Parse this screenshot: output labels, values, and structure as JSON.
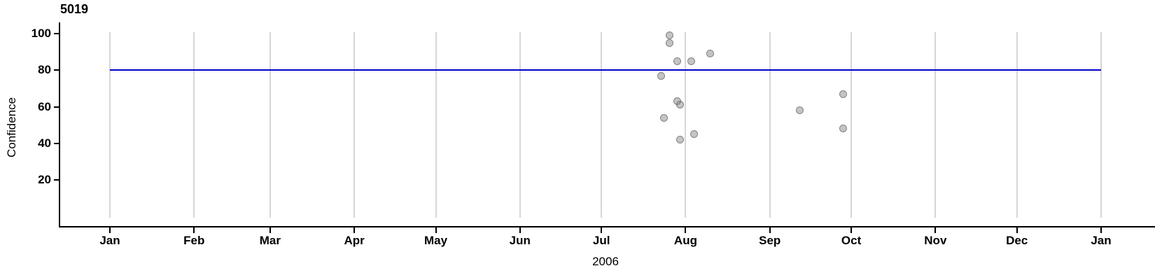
{
  "chart_data": {
    "type": "scatter",
    "title": "5019",
    "xlabel": "2006",
    "ylabel": "Confidence",
    "x_domain": [
      "2006-01-01",
      "2007-01-01"
    ],
    "ylim": [
      0,
      100
    ],
    "y_ticks": [
      20,
      40,
      60,
      80,
      100
    ],
    "x_ticks": [
      {
        "date": "2006-01-01",
        "label": "Jan"
      },
      {
        "date": "2006-02-01",
        "label": "Feb"
      },
      {
        "date": "2006-03-01",
        "label": "Mar"
      },
      {
        "date": "2006-04-01",
        "label": "Apr"
      },
      {
        "date": "2006-05-01",
        "label": "May"
      },
      {
        "date": "2006-06-01",
        "label": "Jun"
      },
      {
        "date": "2006-07-01",
        "label": "Jul"
      },
      {
        "date": "2006-08-01",
        "label": "Aug"
      },
      {
        "date": "2006-09-01",
        "label": "Sep"
      },
      {
        "date": "2006-10-01",
        "label": "Oct"
      },
      {
        "date": "2006-11-01",
        "label": "Nov"
      },
      {
        "date": "2006-12-01",
        "label": "Dec"
      },
      {
        "date": "2007-01-01",
        "label": "Jan"
      }
    ],
    "grid": "vertical-month-gridlines-only",
    "legend": "none",
    "reference_line": {
      "value": 80,
      "x_start": "2006-01-01",
      "x_end": "2007-01-01",
      "color": "#0000cd"
    },
    "points": [
      {
        "date": "2006-07-26",
        "value": 99
      },
      {
        "date": "2006-07-26",
        "value": 95
      },
      {
        "date": "2006-07-29",
        "value": 85
      },
      {
        "date": "2006-08-03",
        "value": 85
      },
      {
        "date": "2006-08-10",
        "value": 89
      },
      {
        "date": "2006-07-23",
        "value": 77
      },
      {
        "date": "2006-07-29",
        "value": 63
      },
      {
        "date": "2006-07-30",
        "value": 61
      },
      {
        "date": "2006-07-24",
        "value": 54
      },
      {
        "date": "2006-07-30",
        "value": 42
      },
      {
        "date": "2006-08-04",
        "value": 45
      },
      {
        "date": "2006-09-12",
        "value": 58
      },
      {
        "date": "2006-09-28",
        "value": 67
      },
      {
        "date": "2006-09-28",
        "value": 48
      }
    ],
    "colors": {
      "point_fill": "rgba(125,125,125,0.45)",
      "point_border": "rgba(80,80,80,0.55)",
      "gridline": "#d6d6d6",
      "axis": "#000000",
      "reference_line": "#0000cd"
    }
  }
}
